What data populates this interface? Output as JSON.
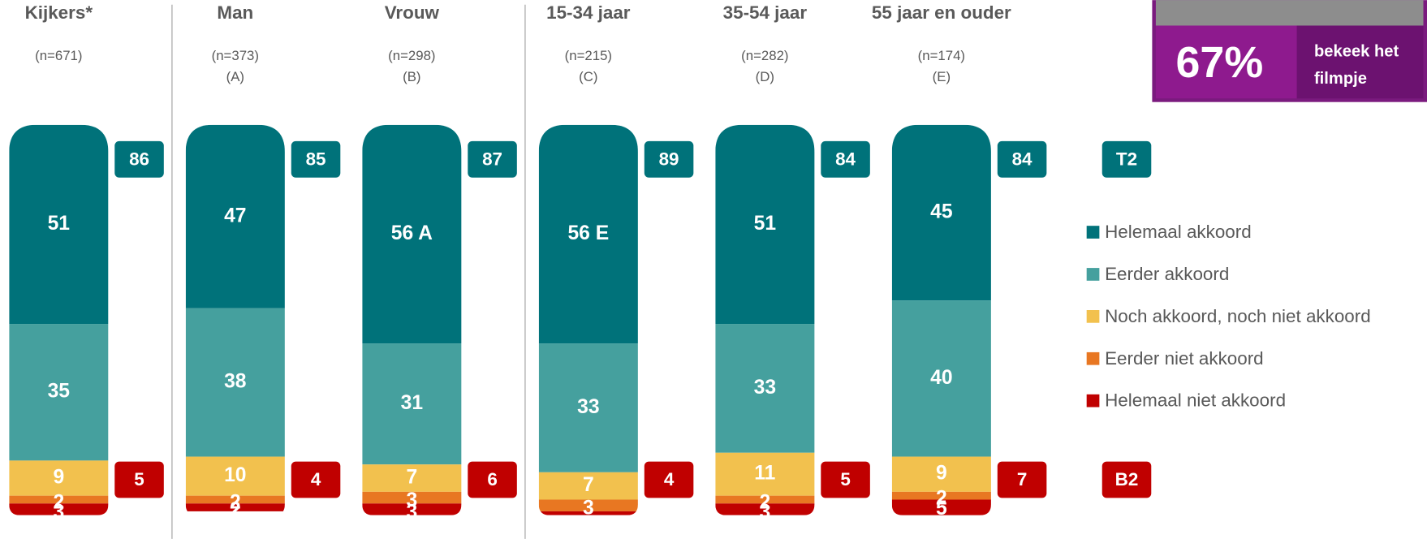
{
  "chart_data": {
    "type": "stacked-bar",
    "categories": [
      "Kijkers*",
      "Man",
      "Vrouw",
      "15-34 jaar",
      "35-54 jaar",
      "55 jaar en ouder"
    ],
    "n_labels": [
      "(n=671)",
      "(n=373)",
      "(n=298)",
      "(n=215)",
      "(n=282)",
      "(n=174)"
    ],
    "group_letters": [
      null,
      "(A)",
      "(B)",
      "(C)",
      "(D)",
      "(E)"
    ],
    "ylim": [
      0,
      100
    ],
    "series": [
      {
        "name": "Helemaal akkoord",
        "color": "#00727a",
        "values": [
          51,
          47,
          56,
          56,
          51,
          45
        ],
        "value_labels": [
          "51",
          "47",
          "56 A",
          "56 E",
          "51",
          "45"
        ]
      },
      {
        "name": "Eerder akkoord",
        "color": "#45a09e",
        "values": [
          35,
          38,
          31,
          33,
          33,
          40
        ]
      },
      {
        "name": "Noch akkoord, noch niet akkoord",
        "color": "#f2c14e",
        "values": [
          9,
          10,
          7,
          7,
          11,
          9
        ]
      },
      {
        "name": "Eerder niet akkoord",
        "color": "#e87722",
        "values": [
          2,
          2,
          3,
          3,
          2,
          2
        ]
      },
      {
        "name": "Helemaal niet akkoord",
        "color": "#c00000",
        "values": [
          3,
          2,
          3,
          1,
          3,
          5
        ]
      }
    ],
    "top2": {
      "label": "T2",
      "color": "#00727a",
      "values": [
        86,
        85,
        87,
        89,
        84,
        84
      ]
    },
    "bottom2": {
      "label": "B2",
      "color": "#c00000",
      "values": [
        5,
        4,
        6,
        4,
        5,
        7
      ]
    },
    "separators_after": [
      0,
      2
    ]
  },
  "callout": {
    "figure": "67%",
    "caption": [
      "bekeek het",
      "filmpje"
    ]
  }
}
